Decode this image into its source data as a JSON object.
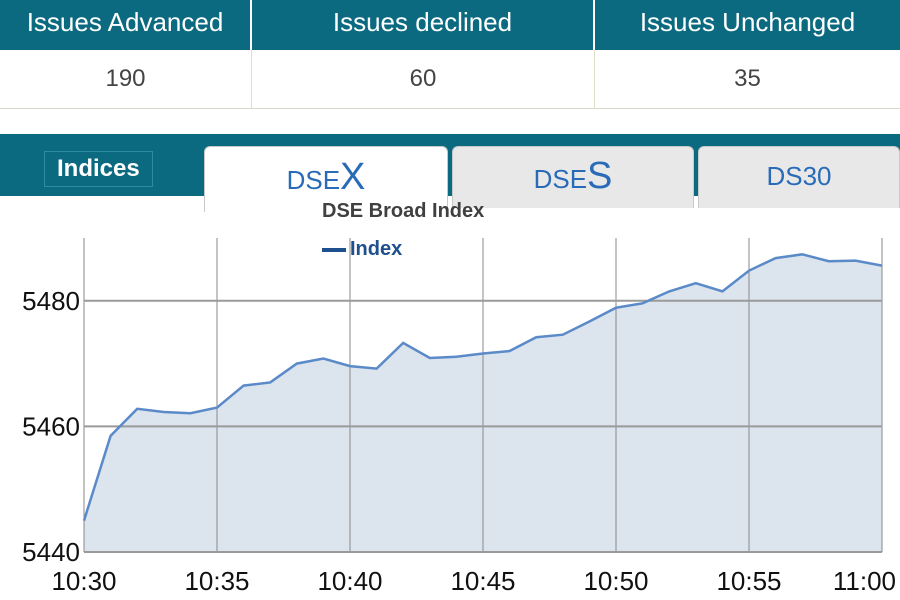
{
  "stats": {
    "headers": [
      "Issues Advanced",
      "Issues declined",
      "Issues Unchanged"
    ],
    "values": [
      "190",
      "60",
      "35"
    ]
  },
  "tabs": {
    "indices_label": "Indices",
    "dsex_prefix": "DSE",
    "dsex_suffix": "X",
    "dses_prefix": "DSE",
    "dses_suffix": "S",
    "ds30_label": "DS30",
    "active": "DSEX"
  },
  "colors": {
    "header_bg": "#0b6a80",
    "line": "#5a8ac8",
    "area": "#dce4ee",
    "tab_text": "#2a6bb8"
  },
  "chart_data": {
    "type": "area",
    "title": "DSE Broad Index",
    "series": [
      {
        "name": "Index",
        "x": [
          "10:30",
          "10:31",
          "10:32",
          "10:33",
          "10:34",
          "10:35",
          "10:36",
          "10:37",
          "10:38",
          "10:39",
          "10:40",
          "10:41",
          "10:42",
          "10:43",
          "10:44",
          "10:45",
          "10:46",
          "10:47",
          "10:48",
          "10:49",
          "10:50",
          "10:51",
          "10:52",
          "10:53",
          "10:54",
          "10:55",
          "10:56",
          "10:57",
          "10:58",
          "10:59",
          "11:00"
        ],
        "values": [
          5445,
          5458.5,
          5462.8,
          5462.3,
          5462.1,
          5463,
          5466.5,
          5467,
          5470,
          5470.8,
          5469.6,
          5469.2,
          5473.3,
          5470.9,
          5471.1,
          5471.6,
          5472,
          5474.2,
          5474.6,
          5476.7,
          5478.9,
          5479.6,
          5481.5,
          5482.8,
          5481.5,
          5484.8,
          5486.8,
          5487.4,
          5486.3,
          5486.4,
          5485.6
        ]
      }
    ],
    "x_ticks": [
      "10:30",
      "10:35",
      "10:40",
      "10:45",
      "10:50",
      "10:55",
      "11:00"
    ],
    "y_ticks": [
      5440,
      5460,
      5480
    ],
    "ylim": [
      5440,
      5490
    ],
    "grid": true,
    "legend": "top-center"
  }
}
